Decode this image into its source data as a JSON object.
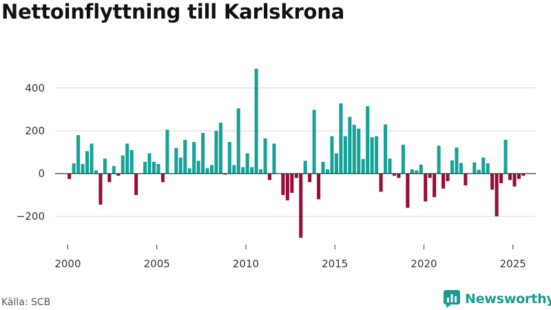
{
  "chart_data": {
    "type": "bar",
    "title": "Nettoinflyttning till Karlskrona",
    "xlabel": "",
    "ylabel": "",
    "unit": "quarter",
    "x_start": 2000.0,
    "x_step": 0.25,
    "xlim": [
      1999.2,
      2026.2
    ],
    "ylim": [
      -300,
      500
    ],
    "yticks": [
      -200,
      0,
      200,
      400
    ],
    "ytick_labels": [
      "−200",
      "0",
      "200",
      "400"
    ],
    "xticks": [
      2000,
      2005,
      2010,
      2015,
      2020,
      2025
    ],
    "xtick_labels": [
      "2000",
      "2005",
      "2010",
      "2015",
      "2020",
      "2025"
    ],
    "grid": true,
    "positive_color": "#14a398",
    "negative_color": "#970c3a",
    "values": [
      -25,
      48,
      180,
      45,
      105,
      140,
      15,
      -145,
      70,
      -40,
      35,
      -10,
      85,
      140,
      110,
      -100,
      0,
      55,
      95,
      55,
      45,
      -40,
      205,
      0,
      120,
      75,
      158,
      25,
      148,
      60,
      190,
      25,
      40,
      200,
      238,
      -5,
      148,
      40,
      305,
      30,
      95,
      30,
      490,
      20,
      165,
      -30,
      140,
      0,
      -100,
      -125,
      -90,
      -20,
      -300,
      60,
      -40,
      298,
      -120,
      55,
      20,
      175,
      95,
      328,
      175,
      265,
      228,
      210,
      68,
      315,
      170,
      175,
      -85,
      230,
      70,
      -10,
      -20,
      135,
      -160,
      20,
      15,
      42,
      -130,
      -20,
      -110,
      130,
      -70,
      -35,
      62,
      122,
      50,
      -55,
      0,
      52,
      18,
      75,
      48,
      -75,
      -200,
      -45,
      158,
      -30,
      -60,
      -25,
      -10
    ]
  },
  "footer": {
    "source": "Källa: SCB",
    "brand": "Newsworthy"
  },
  "colors": {
    "brand": "#1b9a8e",
    "grid": "#d6d6d6",
    "zero_line": "#333333"
  }
}
